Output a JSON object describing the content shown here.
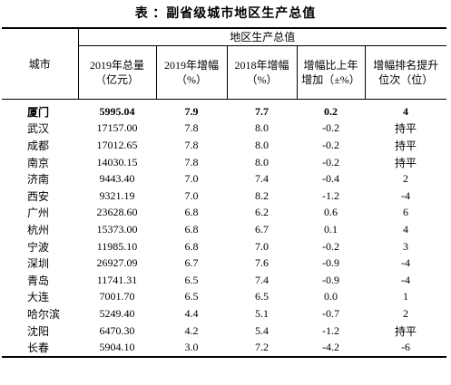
{
  "title": "表 ：副省级城市地区生产总值",
  "header": {
    "city": "城市",
    "group": "地区生产总值",
    "columns": [
      "2019年总量（亿元）",
      "2019年增幅（%）",
      "2018年增幅（%）",
      "增幅比上年增加（±%）",
      "增幅排名提升位次（位）"
    ]
  },
  "table": {
    "rows": [
      [
        "厦门",
        "5995.04",
        "7.9",
        "7.7",
        "0.2",
        "4"
      ],
      [
        "武汉",
        "17157.00",
        "7.8",
        "8.0",
        "-0.2",
        "持平"
      ],
      [
        "成都",
        "17012.65",
        "7.8",
        "8.0",
        "-0.2",
        "持平"
      ],
      [
        "南京",
        "14030.15",
        "7.8",
        "8.0",
        "-0.2",
        "持平"
      ],
      [
        "济南",
        "9443.40",
        "7.0",
        "7.4",
        "-0.4",
        "2"
      ],
      [
        "西安",
        "9321.19",
        "7.0",
        "8.2",
        "-1.2",
        "-4"
      ],
      [
        "广州",
        "23628.60",
        "6.8",
        "6.2",
        "0.6",
        "6"
      ],
      [
        "杭州",
        "15373.00",
        "6.8",
        "6.7",
        "0.1",
        "4"
      ],
      [
        "宁波",
        "11985.10",
        "6.8",
        "7.0",
        "-0.2",
        "3"
      ],
      [
        "深圳",
        "26927.09",
        "6.7",
        "7.6",
        "-0.9",
        "-4"
      ],
      [
        "青岛",
        "11741.31",
        "6.5",
        "7.4",
        "-0.9",
        "-4"
      ],
      [
        "大连",
        "7001.70",
        "6.5",
        "6.5",
        "0.0",
        "1"
      ],
      [
        "哈尔滨",
        "5249.40",
        "4.4",
        "5.1",
        "-0.7",
        "2"
      ],
      [
        "沈阳",
        "6470.30",
        "4.2",
        "5.4",
        "-1.2",
        "持平"
      ],
      [
        "长春",
        "5904.10",
        "3.0",
        "7.2",
        "-4.2",
        "-6"
      ]
    ]
  }
}
